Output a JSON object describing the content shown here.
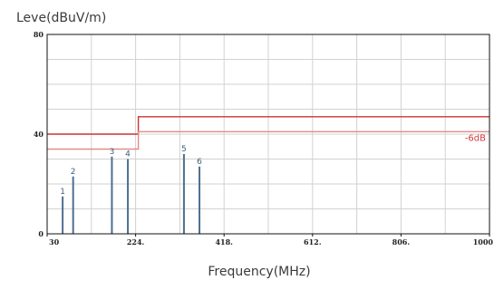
{
  "chart_data": {
    "type": "line",
    "ylabel": "Leve(dBuV/m)",
    "xlabel": "Frequency(MHz)",
    "xlim": [
      30,
      1000
    ],
    "ylim": [
      0,
      80
    ],
    "x_ticks": [
      {
        "value": 30,
        "label": "30"
      },
      {
        "value": 224,
        "label": "224."
      },
      {
        "value": 418,
        "label": "418."
      },
      {
        "value": 612,
        "label": "612."
      },
      {
        "value": 806,
        "label": "806."
      },
      {
        "value": 1000,
        "label": "1000"
      }
    ],
    "y_ticks": [
      {
        "value": 0,
        "label": "0"
      },
      {
        "value": 40,
        "label": "40"
      },
      {
        "value": 80,
        "label": "80"
      }
    ],
    "grid": true,
    "limit_lines": [
      {
        "points": [
          [
            30,
            40
          ],
          [
            230,
            40
          ],
          [
            230,
            47
          ],
          [
            1000,
            47
          ]
        ],
        "color": "#cc3333"
      },
      {
        "points": [
          [
            30,
            34
          ],
          [
            230,
            34
          ],
          [
            230,
            41
          ],
          [
            1000,
            41
          ]
        ],
        "color": "#e58a8a",
        "label": "-6dB"
      }
    ],
    "markers": [
      {
        "label": "1",
        "x": 64,
        "y": 15
      },
      {
        "label": "2",
        "x": 87,
        "y": 23
      },
      {
        "label": "3",
        "x": 172,
        "y": 31
      },
      {
        "label": "4",
        "x": 207,
        "y": 30
      },
      {
        "label": "5",
        "x": 330,
        "y": 32
      },
      {
        "label": "6",
        "x": 364,
        "y": 27
      }
    ],
    "marker_color": "#4d6f8f"
  }
}
